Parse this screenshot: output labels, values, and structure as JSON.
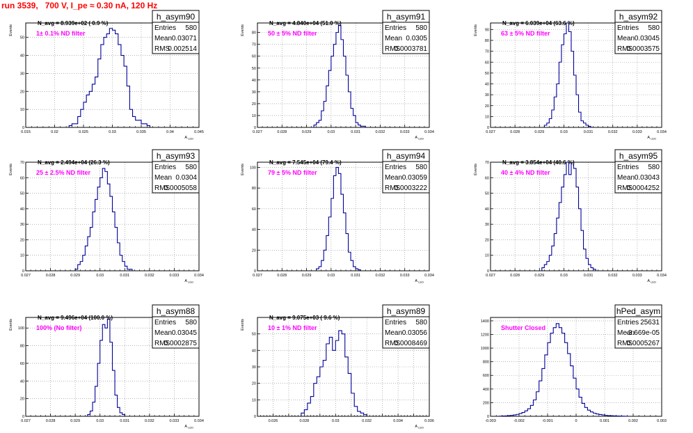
{
  "page_title": "run 3539,   700 V, I_pe ≈ 0.30 nA, 120 Hz",
  "colors": {
    "hist": "#000099",
    "annotation": "#ff00ff",
    "title": "#ff0000",
    "axis": "#000000"
  },
  "chart_data": [
    {
      "type": "histogram",
      "title": "h_asym90",
      "ylabel": "Events",
      "xlabel": "A_LED",
      "stats": {
        "Entries": "580",
        "Mean": "0.03071",
        "RMS": "0.002514"
      },
      "navg": "N_avg = 8.939e+02 ( 0.9 %)",
      "filter": "1± 0.1% ND filter",
      "xlim": [
        0.015,
        0.045
      ],
      "ylim": [
        0,
        58
      ],
      "xticks": [
        0.015,
        0.02,
        0.025,
        0.03,
        0.035,
        0.04,
        0.045
      ],
      "xticklabels": [
        "0.015",
        "0.02",
        "0.025",
        "0.03",
        "0.035",
        "0.04",
        "0.045"
      ],
      "yticks": [
        0,
        10,
        20,
        30,
        40,
        50
      ],
      "bin_start": 0.0225,
      "bin_width": 0.0005,
      "counts": [
        1,
        2,
        2,
        6,
        10,
        14,
        18,
        20,
        24,
        28,
        38,
        46,
        50,
        52,
        55,
        54,
        52,
        46,
        40,
        34,
        23,
        10,
        6,
        4,
        4,
        2,
        2,
        1
      ]
    },
    {
      "type": "histogram",
      "title": "h_asym91",
      "ylabel": "Events",
      "xlabel": "A_LED",
      "stats": {
        "Entries": "580",
        "Mean": "0.0305",
        "RMS": "0.0003781"
      },
      "navg": "N_avg = 4.840e+04 (51.0 %)",
      "filter": "50 ± 5% ND filter",
      "xlim": [
        0.027,
        0.034
      ],
      "ylim": [
        0,
        88
      ],
      "xticks": [
        0.027,
        0.028,
        0.029,
        0.03,
        0.031,
        0.032,
        0.033,
        0.034
      ],
      "xticklabels": [
        "0.027",
        "0.028",
        "0.029",
        "0.03",
        "0.031",
        "0.032",
        "0.033",
        "0.034"
      ],
      "yticks": [
        0,
        10,
        20,
        30,
        40,
        50,
        60,
        70,
        80
      ],
      "bin_start": 0.0293,
      "bin_width": 0.0001,
      "counts": [
        2,
        4,
        6,
        14,
        22,
        35,
        48,
        60,
        70,
        80,
        86,
        74,
        60,
        44,
        30,
        16,
        10,
        4,
        2,
        1,
        1
      ]
    },
    {
      "type": "histogram",
      "title": "h_asym92",
      "ylabel": "Events",
      "xlabel": "A_LED",
      "stats": {
        "Entries": "580",
        "Mean": "0.03045",
        "RMS": "0.0003575"
      },
      "navg": "N_avg = 6.039e+04 (63.6 %)",
      "filter": "63 ± 5% ND filter",
      "xlim": [
        0.027,
        0.034
      ],
      "ylim": [
        0,
        96
      ],
      "xticks": [
        0.027,
        0.028,
        0.029,
        0.03,
        0.031,
        0.032,
        0.033,
        0.034
      ],
      "xticklabels": [
        "0.027",
        "0.028",
        "0.029",
        "0.03",
        "0.031",
        "0.032",
        "0.033",
        "0.034"
      ],
      "yticks": [
        0,
        10,
        20,
        30,
        40,
        50,
        60,
        70,
        80,
        90
      ],
      "bin_start": 0.0292,
      "bin_width": 0.0001,
      "counts": [
        2,
        4,
        8,
        16,
        28,
        40,
        60,
        76,
        86,
        96,
        88,
        70,
        48,
        30,
        14,
        6,
        4,
        2,
        1
      ]
    },
    {
      "type": "histogram",
      "title": "h_asym93",
      "ylabel": "Events",
      "xlabel": "A_LED",
      "stats": {
        "Entries": "580",
        "Mean": "0.0304",
        "RMS": "0.0005058"
      },
      "navg": "N_avg = 2.494e+04 (26.3 %)",
      "filter": "25 ± 2.5% ND filter",
      "xlim": [
        0.027,
        0.034
      ],
      "ylim": [
        0,
        70
      ],
      "xticks": [
        0.027,
        0.028,
        0.029,
        0.03,
        0.031,
        0.032,
        0.033,
        0.034
      ],
      "xticklabels": [
        "0.027",
        "0.028",
        "0.029",
        "0.03",
        "0.031",
        "0.032",
        "0.033",
        "0.034"
      ],
      "yticks": [
        0,
        10,
        20,
        30,
        40,
        50,
        60,
        70
      ],
      "bin_start": 0.029,
      "bin_width": 0.0001,
      "counts": [
        1,
        4,
        6,
        10,
        16,
        22,
        28,
        38,
        46,
        54,
        60,
        66,
        64,
        56,
        48,
        38,
        28,
        18,
        10,
        6,
        3,
        1,
        1
      ]
    },
    {
      "type": "histogram",
      "title": "h_asym94",
      "ylabel": "Events",
      "xlabel": "A_LED",
      "stats": {
        "Entries": "580",
        "Mean": "0.03059",
        "RMS": "0.0003222"
      },
      "navg": "N_avg = 7.545e+04 (79.4 %)",
      "filter": "79 ± 5% ND filter",
      "xlim": [
        0.027,
        0.034
      ],
      "ylim": [
        0,
        105
      ],
      "xticks": [
        0.027,
        0.028,
        0.029,
        0.03,
        0.031,
        0.032,
        0.033,
        0.034
      ],
      "xticklabels": [
        "0.027",
        "0.028",
        "0.029",
        "0.03",
        "0.031",
        "0.032",
        "0.033",
        "0.034"
      ],
      "yticks": [
        0,
        20,
        40,
        60,
        80,
        100
      ],
      "bin_start": 0.0294,
      "bin_width": 0.0001,
      "counts": [
        2,
        4,
        10,
        20,
        34,
        52,
        70,
        92,
        100,
        94,
        74,
        56,
        36,
        18,
        10,
        4,
        2,
        1
      ]
    },
    {
      "type": "histogram",
      "title": "h_asym95",
      "ylabel": "Events",
      "xlabel": "A_LED",
      "stats": {
        "Entries": "580",
        "Mean": "0.03043",
        "RMS": "0.0004252"
      },
      "navg": "N_avg = 3.854e+04 (40.6 %)",
      "filter": "40 ± 4% ND filter",
      "xlim": [
        0.027,
        0.034
      ],
      "ylim": [
        0,
        70
      ],
      "xticks": [
        0.027,
        0.028,
        0.029,
        0.03,
        0.031,
        0.032,
        0.033,
        0.034
      ],
      "xticklabels": [
        "0.027",
        "0.028",
        "0.029",
        "0.03",
        "0.031",
        "0.032",
        "0.033",
        "0.034"
      ],
      "yticks": [
        0,
        10,
        20,
        30,
        40,
        50,
        60,
        70
      ],
      "bin_start": 0.0291,
      "bin_width": 0.0001,
      "counts": [
        2,
        4,
        6,
        10,
        16,
        24,
        34,
        44,
        54,
        62,
        70,
        62,
        70,
        66,
        54,
        40,
        26,
        14,
        8,
        4,
        2,
        1
      ]
    },
    {
      "type": "histogram",
      "title": "h_asym88",
      "ylabel": "Events",
      "xlabel": "A_LED",
      "stats": {
        "Entries": "580",
        "Mean": "0.03045",
        "RMS": "0.0002875"
      },
      "navg": "N_avg = 9.496e+04 (100.0 %)",
      "filter": "100% (No filter)",
      "xlim": [
        0.027,
        0.034
      ],
      "ylim": [
        0,
        112
      ],
      "xticks": [
        0.027,
        0.028,
        0.029,
        0.03,
        0.031,
        0.032,
        0.033,
        0.034
      ],
      "xticklabels": [
        "0.027",
        "0.028",
        "0.029",
        "0.03",
        "0.031",
        "0.032",
        "0.033",
        "0.034"
      ],
      "yticks": [
        0,
        20,
        40,
        60,
        80,
        100
      ],
      "bin_start": 0.0295,
      "bin_width": 0.0001,
      "counts": [
        2,
        6,
        16,
        34,
        60,
        86,
        104,
        100,
        110,
        84,
        52,
        24,
        10,
        4,
        2
      ]
    },
    {
      "type": "histogram",
      "title": "h_asym89",
      "ylabel": "Events",
      "xlabel": "A_LED",
      "stats": {
        "Entries": "580",
        "Mean": "0.03056",
        "RMS": "0.0008469"
      },
      "navg": "N_avg = 9.075e+03 ( 9.6 %)",
      "filter": "10 ± 1% ND filter",
      "xlim": [
        0.025,
        0.036
      ],
      "ylim": [
        0,
        60
      ],
      "xticks": [
        0.025,
        0.026,
        0.027,
        0.028,
        0.029,
        0.03,
        0.031,
        0.032,
        0.033,
        0.034,
        0.035,
        0.036
      ],
      "xticklabels": [
        "",
        "0.026",
        "",
        "0.028",
        "",
        "0.03",
        "",
        "0.032",
        "",
        "0.034",
        "",
        "0.036"
      ],
      "yticks": [
        0,
        10,
        20,
        30,
        40,
        50
      ],
      "bin_start": 0.0278,
      "bin_width": 0.0002,
      "counts": [
        2,
        4,
        8,
        12,
        20,
        24,
        30,
        34,
        44,
        48,
        40,
        46,
        52,
        50,
        36,
        26,
        14,
        6,
        3,
        2,
        1
      ]
    },
    {
      "type": "histogram",
      "title": "hPed_asym",
      "ylabel": "",
      "xlabel": "",
      "stats": {
        "Entries": "25631",
        "Mean": "-3.669e-05",
        "RMS": "0.0005267"
      },
      "navg": "",
      "filter": "Shutter Closed",
      "xlim": [
        -0.003,
        0.003
      ],
      "ylim": [
        0,
        1450
      ],
      "xticks": [
        -0.003,
        -0.002,
        -0.001,
        0,
        0.001,
        0.002,
        0.003
      ],
      "xticklabels": [
        "-0.003",
        "-0.002",
        "-0.001",
        "0",
        "0.001",
        "0.002",
        "0.003"
      ],
      "yticks": [
        0,
        200,
        400,
        600,
        800,
        1000,
        1200,
        1400
      ],
      "bin_start": -0.0027,
      "bin_width": 0.0001,
      "counts": [
        2,
        4,
        6,
        10,
        14,
        20,
        28,
        40,
        56,
        80,
        110,
        160,
        240,
        360,
        520,
        700,
        900,
        1080,
        1220,
        1300,
        1360,
        1300,
        1220,
        1080,
        920,
        740,
        560,
        400,
        280,
        190,
        130,
        90,
        64,
        46,
        34,
        26,
        20,
        14,
        10,
        8,
        6,
        4,
        3,
        2,
        1
      ]
    }
  ]
}
